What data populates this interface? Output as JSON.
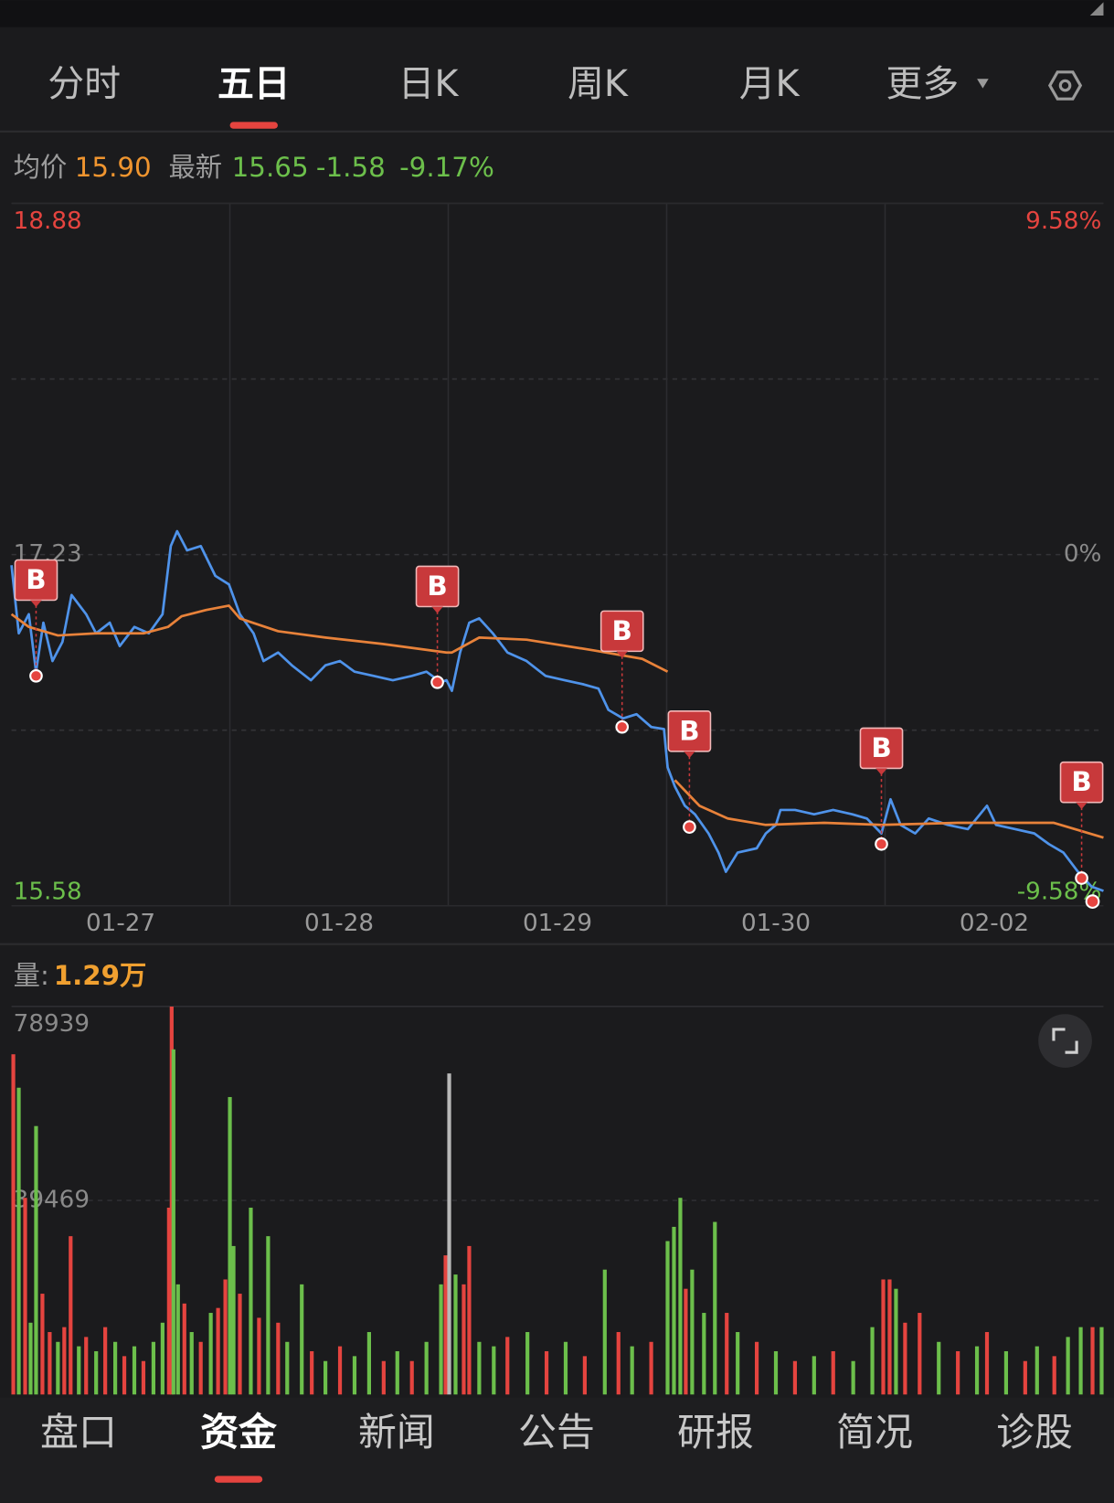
{
  "tabs": [
    "分时",
    "五日",
    "日K",
    "周K",
    "月K",
    "更多"
  ],
  "active_tab": 1,
  "quote": {
    "avg_label": "均价",
    "avg": "15.90",
    "latest_label": "最新",
    "latest": "15.65",
    "change": "-1.58",
    "change_pct": "-9.17%"
  },
  "chart_data": [
    {
      "type": "line",
      "xlim": [
        0,
        1200
      ],
      "ylim": [
        15.58,
        18.88
      ],
      "yticks": [
        18.88,
        17.23,
        15.58
      ],
      "y2lim": [
        -9.58,
        9.58
      ],
      "y2ticks": [
        {
          "value": 9.58,
          "label": "9.58%"
        },
        {
          "value": 0,
          "label": "0%"
        },
        {
          "value": -9.58,
          "label": "-9.58%"
        }
      ],
      "xticks": [
        {
          "value": 120,
          "label": "01-27"
        },
        {
          "value": 360,
          "label": "01-28"
        },
        {
          "value": 600,
          "label": "01-29"
        },
        {
          "value": 840,
          "label": "01-30"
        },
        {
          "value": 1080,
          "label": "02-02"
        }
      ],
      "xgrid": [
        240,
        480,
        720,
        960
      ],
      "ygrid": [
        16.405,
        18.055
      ],
      "series": [
        {
          "color": "#4f93ea",
          "x": [
            0,
            8,
            19,
            27,
            35,
            45,
            56,
            66,
            82,
            93,
            108,
            119,
            135,
            151,
            166,
            175,
            182,
            193,
            208,
            224,
            239,
            251,
            266,
            277,
            293,
            308,
            329,
            345,
            361,
            377,
            398,
            419,
            440,
            456,
            472,
            478,
            484,
            493,
            503,
            514,
            529,
            545,
            566,
            587,
            608,
            629,
            645,
            656,
            672,
            687,
            703,
            717,
            721,
            729,
            740,
            751,
            766,
            777,
            785,
            798,
            819,
            829,
            840,
            845,
            861,
            882,
            903,
            924,
            940,
            956,
            966,
            977,
            993,
            1008,
            1029,
            1051,
            1072,
            1082,
            1103,
            1124,
            1140,
            1156,
            1172,
            1187,
            1200
          ],
          "values": [
            17.18,
            16.86,
            16.95,
            16.68,
            16.91,
            16.73,
            16.82,
            17.04,
            16.95,
            16.86,
            16.91,
            16.8,
            16.89,
            16.86,
            16.95,
            17.27,
            17.34,
            17.25,
            17.27,
            17.13,
            17.09,
            16.95,
            16.86,
            16.73,
            16.77,
            16.71,
            16.64,
            16.71,
            16.73,
            16.68,
            16.66,
            16.64,
            16.66,
            16.68,
            16.63,
            16.64,
            16.59,
            16.77,
            16.91,
            16.93,
            16.86,
            16.77,
            16.73,
            16.66,
            16.64,
            16.62,
            16.6,
            16.5,
            16.46,
            16.48,
            16.42,
            16.41,
            16.23,
            16.14,
            16.05,
            16.01,
            15.92,
            15.83,
            15.74,
            15.83,
            15.85,
            15.92,
            15.96,
            16.03,
            16.03,
            16.01,
            16.03,
            16.01,
            15.99,
            15.92,
            16.08,
            15.96,
            15.92,
            15.99,
            15.96,
            15.94,
            16.05,
            15.96,
            15.94,
            15.92,
            15.87,
            15.83,
            15.74,
            15.67,
            15.65
          ]
        },
        {
          "color": "#e8823a",
          "x": [
            0,
            19,
            51,
            93,
            145,
            172,
            187,
            214,
            239,
            251,
            293,
            345,
            408,
            478,
            484,
            514,
            566,
            640,
            693,
            721,
            725,
            729,
            756,
            787,
            829,
            893,
            956,
            1040,
            1145,
            1200
          ],
          "values": [
            16.95,
            16.89,
            16.85,
            16.86,
            16.86,
            16.89,
            16.94,
            16.97,
            16.99,
            16.93,
            16.87,
            16.84,
            16.81,
            16.77,
            16.77,
            16.84,
            16.83,
            16.78,
            16.74,
            16.68,
            null,
            16.17,
            16.05,
            15.99,
            15.96,
            15.97,
            15.96,
            15.97,
            15.97,
            15.9
          ]
        }
      ],
      "markers": [
        {
          "label": "B",
          "x": 27,
          "value": 16.66
        },
        {
          "label": "B",
          "x": 468,
          "value": 16.63
        },
        {
          "label": "B",
          "x": 671,
          "value": 16.42
        },
        {
          "label": "B",
          "x": 745,
          "value": 15.95
        },
        {
          "label": "B",
          "x": 956,
          "value": 15.87
        },
        {
          "label": "B",
          "x": 1176,
          "value": 15.71
        }
      ],
      "marker_color": "#c8393b",
      "current": {
        "x": 1188,
        "value": 15.6
      }
    },
    {
      "type": "bar",
      "title": "量:",
      "subtitle": "1.29万",
      "xlim": [
        0,
        1200
      ],
      "ylim": [
        0,
        78939
      ],
      "yticks": [
        78939,
        39469
      ],
      "palette": {
        "up": "#e5443f",
        "down": "#6cbf4b",
        "flat": "#b8b8b8"
      },
      "x": [
        2,
        8,
        15,
        21,
        27,
        34,
        42,
        51,
        58,
        65,
        74,
        82,
        93,
        103,
        114,
        124,
        135,
        145,
        156,
        166,
        173,
        176,
        178,
        183,
        190,
        198,
        208,
        219,
        227,
        235,
        240,
        244,
        251,
        263,
        272,
        282,
        293,
        303,
        319,
        330,
        345,
        361,
        377,
        393,
        409,
        424,
        440,
        456,
        472,
        477,
        481,
        488,
        497,
        503,
        514,
        530,
        545,
        567,
        588,
        609,
        630,
        652,
        667,
        682,
        703,
        721,
        728,
        735,
        741,
        748,
        761,
        773,
        786,
        798,
        819,
        840,
        861,
        882,
        903,
        925,
        946,
        958,
        965,
        972,
        982,
        998,
        1019,
        1040,
        1061,
        1072,
        1093,
        1114,
        1127,
        1146,
        1161,
        1175,
        1188,
        1198
      ],
      "values": [
        69200,
        62400,
        40000,
        14600,
        54600,
        20500,
        12700,
        10700,
        13700,
        32200,
        9800,
        11700,
        8800,
        13700,
        10700,
        7800,
        9800,
        6800,
        10700,
        14600,
        38000,
        78900,
        70200,
        22400,
        18500,
        12700,
        10700,
        16600,
        17600,
        23400,
        60500,
        30200,
        20500,
        38000,
        15600,
        32200,
        14600,
        10700,
        22400,
        8800,
        6800,
        9800,
        7800,
        12700,
        6800,
        8800,
        6800,
        10700,
        22400,
        28300,
        65300,
        24400,
        22400,
        30200,
        10700,
        9800,
        11700,
        12700,
        8800,
        10700,
        7800,
        25400,
        12700,
        9800,
        10700,
        31200,
        34100,
        40000,
        21500,
        25400,
        16600,
        35100,
        16600,
        12700,
        10700,
        8800,
        6800,
        7800,
        8800,
        6800,
        13700,
        23400,
        23400,
        21500,
        14600,
        16600,
        10700,
        8800,
        9800,
        12700,
        8800,
        6800,
        9800,
        7800,
        11700,
        13700,
        13700,
        13700
      ],
      "directions": [
        "up",
        "down",
        "up",
        "down",
        "down",
        "up",
        "up",
        "down",
        "up",
        "up",
        "down",
        "up",
        "down",
        "up",
        "down",
        "up",
        "down",
        "up",
        "down",
        "down",
        "up",
        "up",
        "down",
        "down",
        "up",
        "down",
        "up",
        "down",
        "up",
        "up",
        "down",
        "down",
        "up",
        "down",
        "up",
        "down",
        "up",
        "down",
        "down",
        "up",
        "down",
        "up",
        "down",
        "down",
        "up",
        "down",
        "up",
        "down",
        "down",
        "up",
        "flat",
        "down",
        "up",
        "up",
        "down",
        "down",
        "up",
        "down",
        "up",
        "down",
        "up",
        "down",
        "up",
        "down",
        "up",
        "down",
        "down",
        "down",
        "up",
        "down",
        "down",
        "down",
        "up",
        "down",
        "up",
        "down",
        "up",
        "down",
        "up",
        "down",
        "down",
        "up",
        "up",
        "down",
        "up",
        "up",
        "down",
        "up",
        "down",
        "up",
        "down",
        "up",
        "down",
        "up",
        "down",
        "down",
        "up",
        "down"
      ]
    }
  ],
  "bottom_tabs": [
    "盘口",
    "资金",
    "新闻",
    "公告",
    "研报",
    "简况",
    "诊股"
  ],
  "active_bottom_tab": 1
}
